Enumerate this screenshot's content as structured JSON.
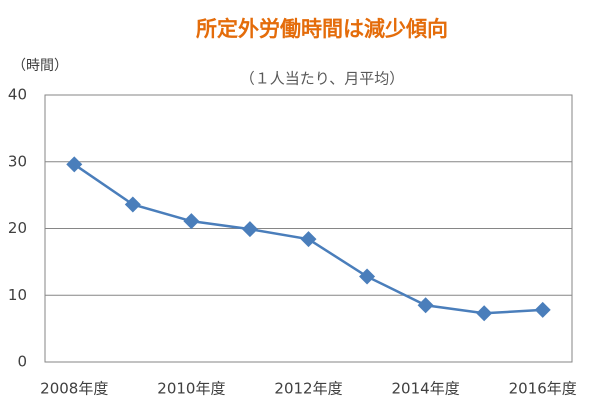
{
  "chart_data": {
    "type": "line",
    "title": "所定外労働時間は減少傾向",
    "subtitle": "（１人当たり、月平均）",
    "y_label": "（時間）",
    "categories": [
      "2008年度",
      null,
      "2010年度",
      null,
      "2012年度",
      null,
      "2014年度",
      null,
      "2016年度"
    ],
    "values": [
      29.6,
      23.6,
      21.1,
      19.9,
      18.4,
      12.8,
      8.5,
      7.3,
      7.8
    ],
    "color": "#4a7ebb",
    "title_color": "#e46c0a",
    "ylim": [
      0,
      40
    ],
    "yticks": [
      0,
      10,
      20,
      30,
      40
    ],
    "grid": true
  }
}
